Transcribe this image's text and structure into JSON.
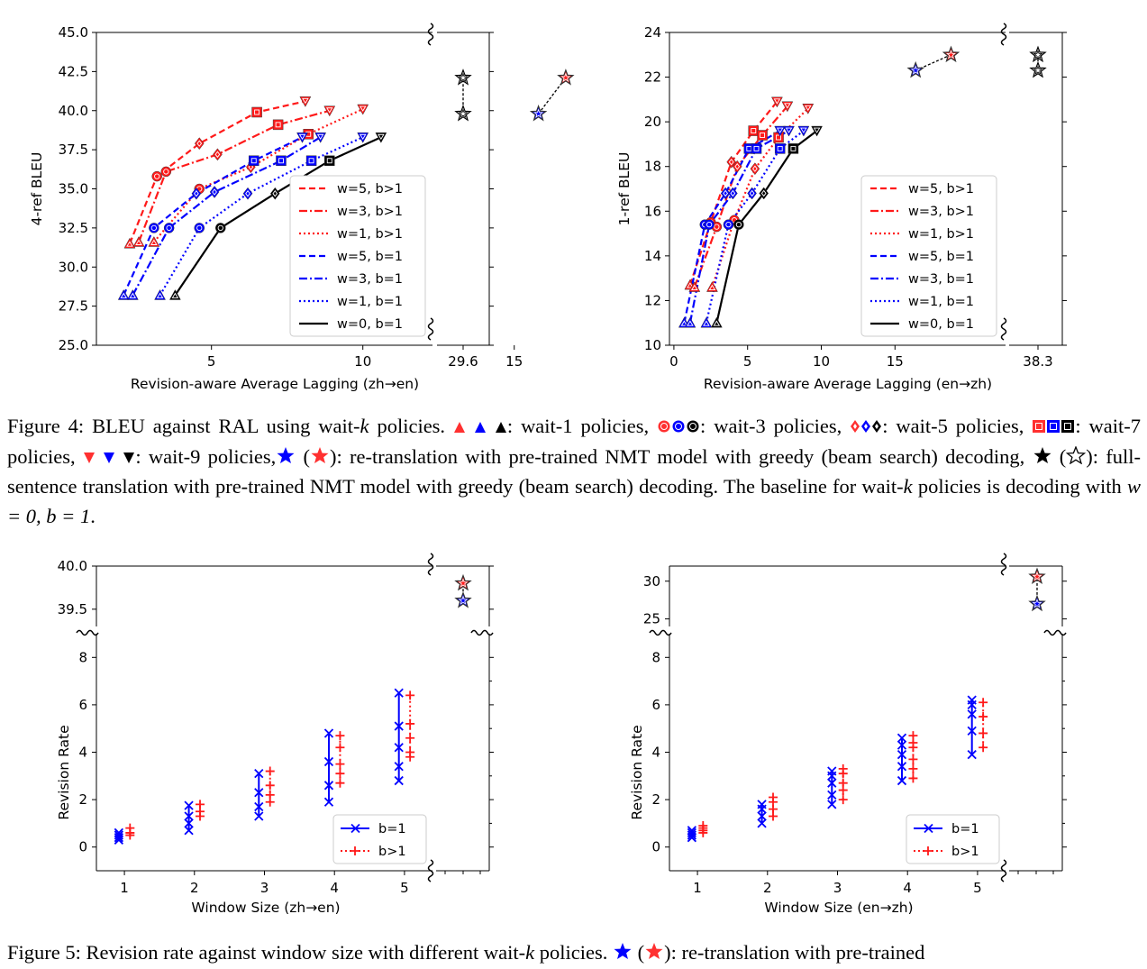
{
  "figure4": {
    "caption": {
      "label": "Figure 4:",
      "intro": "BLEU against RAL using wait-",
      "k": "k",
      "suffix": " policies.",
      "wait1": ": wait-1 policies,",
      "wait3": ": wait-3 policies,",
      "wait5": ": wait-5 policies,",
      "wait7": ": wait-7 policies,",
      "wait9": ": wait-9 policies,",
      "retrans": ": re-translation with pre-trained NMT model with greedy (beam search) decoding,",
      "fullsent": ": full-sentence translation with pre-trained NMT model with greedy (beam search) decoding. The baseline for wait-",
      "baseline_end": " policies is decoding with ",
      "eq": "w = 0, b = 1",
      "end": "."
    }
  },
  "figure5": {
    "caption": {
      "label": "Figure 5:",
      "text": "Revision rate against window size with different wait-",
      "k": "k",
      "text2": " policies.",
      "text3": ": re-translation with pre-trained"
    }
  },
  "colors": {
    "red": "#ff1a1a",
    "blue": "#0000ff",
    "black": "#000000"
  },
  "legend_bleu": [
    "w=5, b>1",
    "w=3, b>1",
    "w=1, b>1",
    "w=5, b=1",
    "w=3, b=1",
    "w=1, b=1",
    "w=0, b=1"
  ],
  "legend_rev": [
    "b=1",
    "b>1"
  ],
  "chart_data": [
    {
      "type": "line",
      "panel": "bleu-zh-en",
      "xlabel": "Revision-aware Average Lagging (zh→en)",
      "ylabel": "4-ref BLEU",
      "xlim": [
        1.2,
        12.3
      ],
      "ylim": [
        25,
        45
      ],
      "xticks": [
        "5",
        "10",
        "15",
        "29.6"
      ],
      "yticks": [
        "25.0",
        "27.5",
        "30.0",
        "32.5",
        "35.0",
        "37.5",
        "40.0",
        "42.5",
        "45.0"
      ],
      "series": [
        {
          "name": "w=5, b>1",
          "x": [
            2.3,
            3.2,
            4.6,
            6.5,
            8.1
          ],
          "y": [
            31.5,
            35.8,
            37.9,
            39.9,
            40.6
          ]
        },
        {
          "name": "w=3, b>1",
          "x": [
            2.6,
            3.5,
            5.2,
            7.2,
            8.9
          ],
          "y": [
            31.6,
            36.1,
            37.2,
            39.1,
            40.0
          ]
        },
        {
          "name": "w=1, b>1",
          "x": [
            3.1,
            4.6,
            6.3,
            8.2,
            10.0
          ],
          "y": [
            31.6,
            35.0,
            36.4,
            38.5,
            40.1
          ]
        },
        {
          "name": "w=5, b=1",
          "x": [
            2.1,
            3.1,
            4.5,
            6.4,
            8.0
          ],
          "y": [
            28.2,
            32.5,
            34.7,
            36.8,
            38.3
          ]
        },
        {
          "name": "w=3, b=1",
          "x": [
            2.4,
            3.6,
            5.1,
            7.3,
            8.6
          ],
          "y": [
            28.2,
            32.5,
            34.8,
            36.8,
            38.3
          ]
        },
        {
          "name": "w=1, b=1",
          "x": [
            3.3,
            4.6,
            6.2,
            8.3,
            10.0
          ],
          "y": [
            28.2,
            32.5,
            34.7,
            36.8,
            38.3
          ]
        },
        {
          "name": "w=0, b=1",
          "x": [
            3.8,
            5.3,
            7.1,
            8.9,
            10.6
          ],
          "y": [
            28.2,
            32.5,
            34.7,
            36.8,
            38.3
          ]
        }
      ],
      "retranslation": {
        "greedy": [
          15.8,
          39.8
        ],
        "beam": [
          16.7,
          42.1
        ]
      },
      "fullsentence": {
        "x": "29.6",
        "greedy": 39.8,
        "beam": 42.1
      }
    },
    {
      "type": "line",
      "panel": "bleu-en-zh",
      "xlabel": "Revision-aware Average Lagging (en→zh)",
      "ylabel": "1-ref BLEU",
      "xlim": [
        -0.3,
        22.5
      ],
      "ylim": [
        10,
        24
      ],
      "xticks": [
        "0",
        "5",
        "10",
        "15",
        "38.3"
      ],
      "yticks": [
        "10",
        "12",
        "14",
        "16",
        "18",
        "20",
        "22",
        "24"
      ],
      "series": [
        {
          "name": "w=5, b>1",
          "x": [
            1.1,
            2.5,
            3.9,
            5.4,
            7.0
          ],
          "y": [
            12.7,
            15.5,
            18.2,
            19.6,
            20.9
          ]
        },
        {
          "name": "w=3, b>1",
          "x": [
            1.4,
            2.9,
            4.3,
            6.0,
            7.7
          ],
          "y": [
            12.6,
            15.3,
            18.0,
            19.4,
            20.7
          ]
        },
        {
          "name": "w=1, b>1",
          "x": [
            2.6,
            4.1,
            5.5,
            7.1,
            9.1
          ],
          "y": [
            12.6,
            15.6,
            17.9,
            19.3,
            20.6
          ]
        },
        {
          "name": "w=5, b=1",
          "x": [
            0.7,
            2.1,
            3.5,
            5.1,
            7.2
          ],
          "y": [
            11.0,
            15.4,
            16.8,
            18.8,
            19.6
          ]
        },
        {
          "name": "w=3, b=1",
          "x": [
            1.1,
            2.4,
            4.0,
            5.6,
            7.8
          ],
          "y": [
            11.0,
            15.4,
            16.8,
            18.8,
            19.6
          ]
        },
        {
          "name": "w=1, b=1",
          "x": [
            2.2,
            3.7,
            5.3,
            7.2,
            8.8
          ],
          "y": [
            11.0,
            15.4,
            16.8,
            18.8,
            19.6
          ]
        },
        {
          "name": "w=0, b=1",
          "x": [
            2.9,
            4.4,
            6.1,
            8.1,
            9.7
          ],
          "y": [
            11.0,
            15.4,
            16.8,
            18.8,
            19.6
          ]
        }
      ],
      "retranslation": {
        "greedy": [
          16.4,
          22.3
        ],
        "beam": [
          18.8,
          23.0
        ]
      },
      "fullsentence": {
        "x": "38.3",
        "greedy": 22.3,
        "beam": 23.0
      }
    },
    {
      "type": "line",
      "panel": "rev-zh-en",
      "xlabel": "Window Size (zh→en)",
      "ylabel": "Revision Rate",
      "xticks": [
        "1",
        "2",
        "3",
        "4",
        "5"
      ],
      "yticks": [
        "0",
        "2",
        "4",
        "6",
        "8"
      ],
      "top_yticks": [
        "39.5",
        "40.0"
      ],
      "b1": [
        [
          0.3,
          0.4,
          0.5,
          0.6
        ],
        [
          0.7,
          1.0,
          1.3,
          1.75
        ],
        [
          1.3,
          1.7,
          2.3,
          3.1
        ],
        [
          1.9,
          2.6,
          3.6,
          4.8
        ],
        [
          2.8,
          3.4,
          4.2,
          5.1,
          6.5
        ]
      ],
      "b_gt1": [
        [
          0.5,
          0.6,
          0.8
        ],
        [
          1.3,
          1.5,
          1.8
        ],
        [
          1.9,
          2.2,
          2.6,
          3.2
        ],
        [
          2.7,
          3.1,
          3.5,
          4.2,
          4.7
        ],
        [
          3.8,
          4.0,
          4.6,
          5.2,
          6.4
        ]
      ],
      "retranslation": {
        "greedy": 39.6,
        "beam": 39.8
      }
    },
    {
      "type": "line",
      "panel": "rev-en-zh",
      "xlabel": "Window Size (en→zh)",
      "ylabel": "Revision Rate",
      "xticks": [
        "1",
        "2",
        "3",
        "4",
        "5"
      ],
      "yticks": [
        "0",
        "2",
        "4",
        "6",
        "8"
      ],
      "top_yticks": [
        "25",
        "30"
      ],
      "b1": [
        [
          0.4,
          0.5,
          0.6,
          0.7
        ],
        [
          1.0,
          1.3,
          1.6,
          1.8
        ],
        [
          1.8,
          2.2,
          2.7,
          3.0,
          3.2
        ],
        [
          2.8,
          3.4,
          3.9,
          4.3,
          4.6
        ],
        [
          3.9,
          4.9,
          5.6,
          6.0,
          6.2
        ]
      ],
      "b_gt1": [
        [
          0.6,
          0.7,
          0.8,
          0.9
        ],
        [
          1.3,
          1.6,
          1.9,
          2.1
        ],
        [
          2.0,
          2.4,
          2.7,
          3.1,
          3.3
        ],
        [
          2.9,
          3.3,
          3.7,
          4.2,
          4.4,
          4.7
        ],
        [
          4.2,
          4.8,
          5.5,
          6.1
        ]
      ],
      "retranslation": {
        "greedy": 27.0,
        "beam": 30.6
      }
    }
  ]
}
